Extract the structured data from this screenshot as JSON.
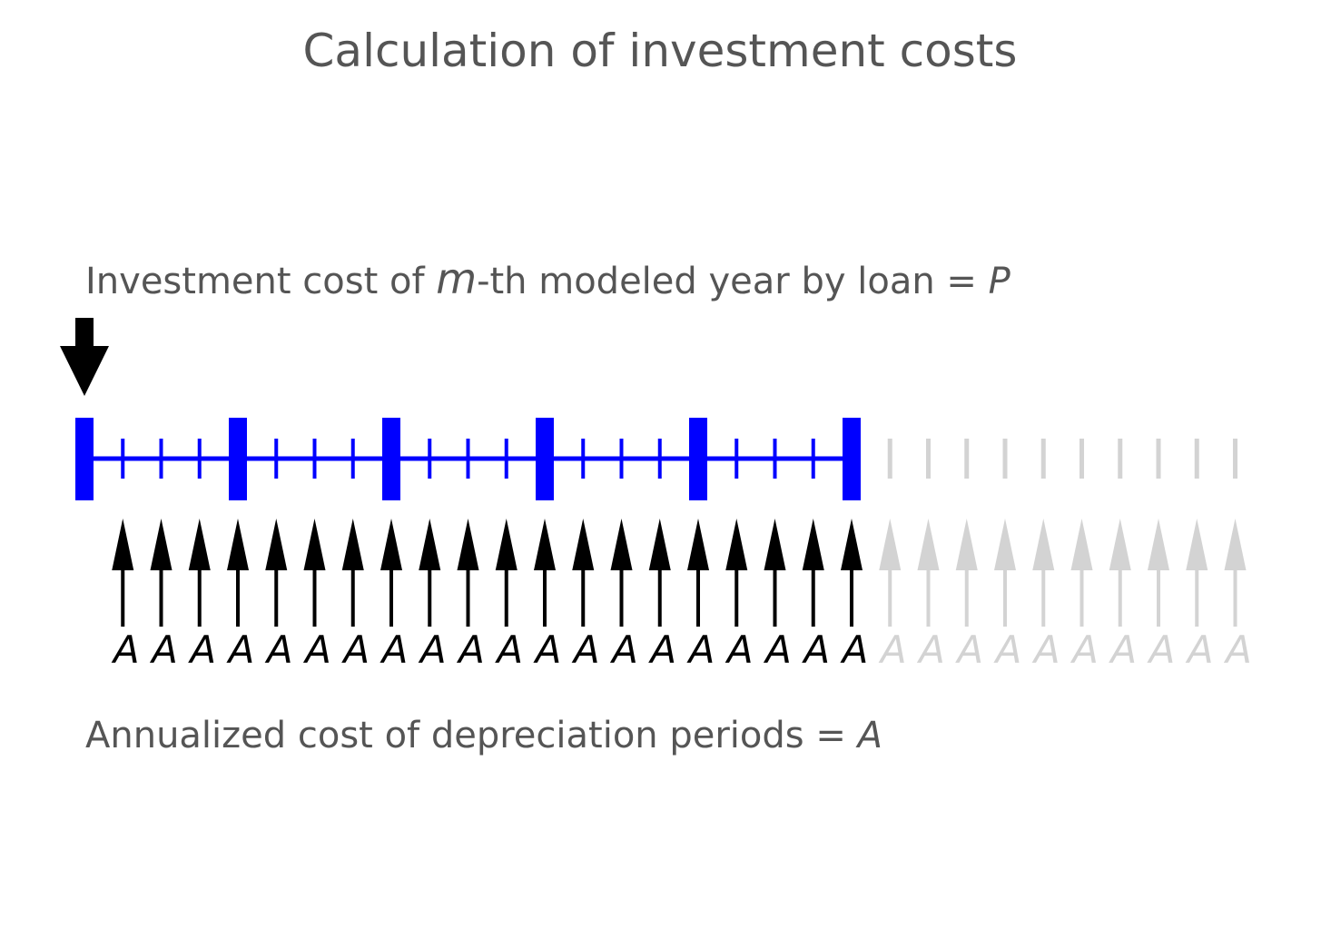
{
  "title": "Calculation of investment costs",
  "investment_label": {
    "prefix": "Investment cost of ",
    "var_m": "m",
    "suffix": "-th modeled year by loan = ",
    "var_p": "P"
  },
  "annualized_label": {
    "prefix": "Annualized cost of depreciation periods  = ",
    "var_a": "A"
  },
  "timeline": {
    "active_periods": 20,
    "inactive_periods": 10,
    "years_per_modeled_year": 4,
    "annuity_symbol": "A"
  },
  "colors": {
    "text": "#555555",
    "timeline_active": "#0000ff",
    "arrow_active": "#000000",
    "inactive": "#d3d3d3",
    "background": "#ffffff"
  }
}
